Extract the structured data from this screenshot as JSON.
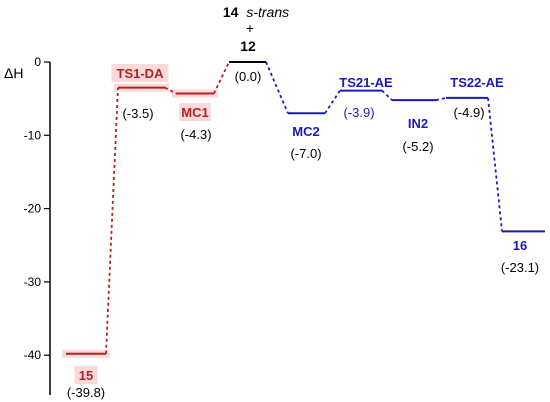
{
  "axis": {
    "y_title": "ΔH",
    "y_range": [
      -45,
      0
    ],
    "y_ticks": [
      {
        "value": 0,
        "label": "0"
      },
      {
        "value": -10,
        "label": "-10"
      },
      {
        "value": -20,
        "label": "-20"
      },
      {
        "value": -30,
        "label": "-30"
      },
      {
        "value": -40,
        "label": "-40"
      }
    ]
  },
  "colors": {
    "da_pathway": "#b22222",
    "ae_pathway": "#1a1ab8",
    "reactant": "#000000",
    "highlight": "#f9d9d9"
  },
  "reactant": {
    "line1_bold": "14",
    "line1_italic": "s-trans",
    "plus": "+",
    "line3": "12"
  },
  "levels": [
    {
      "id": "15",
      "label": "15",
      "value": -39.8,
      "value_text": "(-39.8)",
      "path": "da"
    },
    {
      "id": "TS1-DA",
      "label": "TS1-DA",
      "value": -3.5,
      "value_text": "(-3.5)",
      "path": "da"
    },
    {
      "id": "MC1",
      "label": "MC1",
      "value": -4.3,
      "value_text": "(-4.3)",
      "path": "da"
    },
    {
      "id": "start",
      "label": "",
      "value": 0.0,
      "value_text": "(0.0)",
      "path": "reactant"
    },
    {
      "id": "MC2",
      "label": "MC2",
      "value": -7.0,
      "value_text": "(-7.0)",
      "path": "ae"
    },
    {
      "id": "TS21-AE",
      "label": "TS21-AE",
      "value": -3.9,
      "value_text": "(-3.9)",
      "path": "ae"
    },
    {
      "id": "IN2",
      "label": "IN2",
      "value": -5.2,
      "value_text": "(-5.2)",
      "path": "ae"
    },
    {
      "id": "TS22-AE",
      "label": "TS22-AE",
      "value": -4.9,
      "value_text": "(-4.9)",
      "path": "ae"
    },
    {
      "id": "16",
      "label": "16",
      "value": -23.1,
      "value_text": "(-23.1)",
      "path": "ae"
    }
  ]
}
